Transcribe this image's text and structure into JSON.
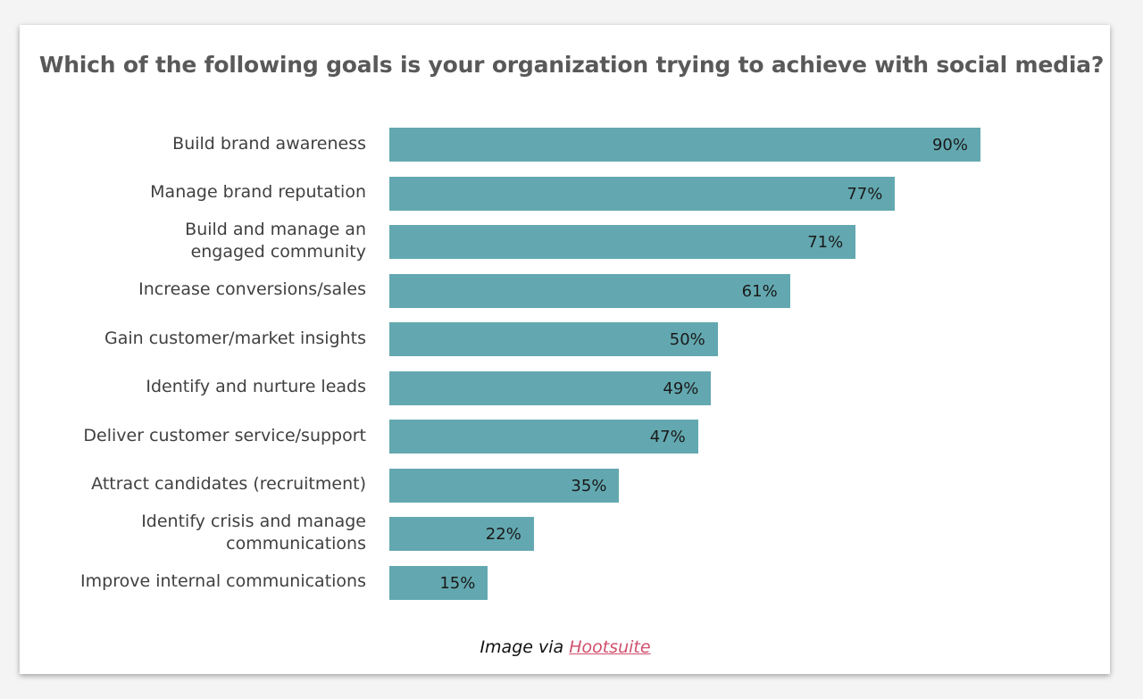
{
  "chart_data": {
    "type": "bar",
    "orientation": "horizontal",
    "title": "Which of the following goals is your organization trying to achieve with social media?",
    "categories": [
      "Build brand awareness",
      "Manage brand reputation",
      "Build and manage an\nengaged community",
      "Increase conversions/sales",
      "Gain customer/market insights",
      "Identify and nurture leads",
      "Deliver customer service/support",
      "Attract candidates (recruitment)",
      "Identify crisis and manage\ncommunications",
      "Improve internal communications"
    ],
    "values": [
      90,
      77,
      71,
      61,
      50,
      49,
      47,
      35,
      22,
      15
    ],
    "value_labels": [
      "90%",
      "77%",
      "71%",
      "61%",
      "50%",
      "49%",
      "47%",
      "35%",
      "22%",
      "15%"
    ],
    "xlim": [
      0,
      100
    ],
    "grid": false,
    "bar_color": "#63a8b0"
  },
  "caption": {
    "prefix": "Image via ",
    "link": "Hootsuite",
    "link_color": "#d0506e"
  }
}
